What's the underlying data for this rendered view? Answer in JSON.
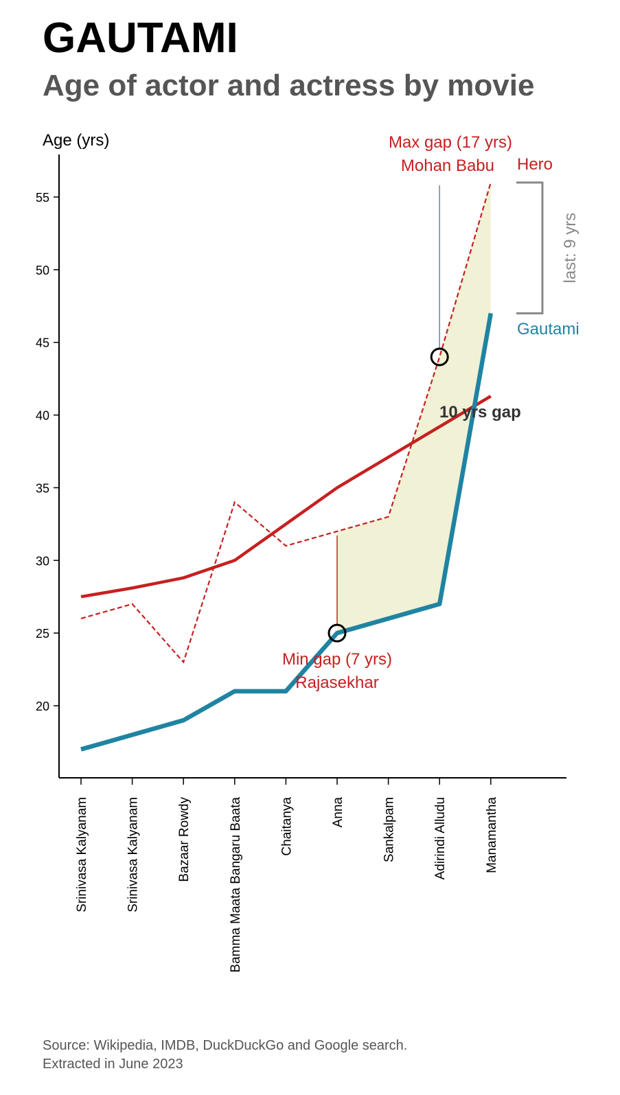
{
  "header": {
    "title": "GAUTAMI",
    "subtitle": "Age of actor and actress by movie"
  },
  "footer": {
    "source_line": "Source: Wikipedia, IMDB, DuckDuckGo and Google search.",
    "extracted_line": "Extracted in June 2023"
  },
  "chart_data": {
    "type": "line",
    "ylabel": "Age (yrs)",
    "ylim": [
      15,
      58
    ],
    "yticks": [
      20,
      25,
      30,
      35,
      40,
      45,
      50,
      55
    ],
    "categories": [
      "Srinivasa Kalyanam",
      "Srinivasa Kalyanam",
      "Bazaar Rowdy",
      "Bamma Maata Bangaru Baata",
      "Chaitanya",
      "Anna",
      "Sankalpam",
      "Adirindi Alludu",
      "Manamantha"
    ],
    "series": [
      {
        "name": "Hero",
        "style": "dashed",
        "color": "#c62020",
        "values": [
          26,
          27,
          23,
          34,
          31,
          32,
          33,
          44,
          56
        ]
      },
      {
        "name": "Gautami",
        "style": "solid",
        "color": "#1f84a2",
        "values": [
          17,
          18,
          19,
          21,
          21,
          25,
          26,
          27,
          47
        ]
      }
    ],
    "trend": {
      "style": "solid",
      "color": "#c62020",
      "values": [
        27.5,
        28.1,
        28.8,
        30,
        32.5,
        35,
        37.1,
        39.2,
        41.3
      ]
    },
    "gap_fill": {
      "from_index": 5,
      "to_index": 8,
      "color": "#f1f1d6"
    },
    "annotations": {
      "max_gap": {
        "index": 7,
        "label_line1": "Max gap (17 yrs)",
        "label_line2": "Mohan Babu",
        "color": "#c62020"
      },
      "min_gap": {
        "index": 5,
        "label_line1": "Min gap (7 yrs)",
        "label_line2": "Rajasekhar",
        "color": "#c62020"
      },
      "avg_gap": {
        "label": "10 yrs gap",
        "color": "#333333"
      },
      "last_gap": {
        "label": "last: 9 yrs",
        "color": "#888888"
      },
      "hero_label": {
        "text": "Hero",
        "color": "#c62020"
      },
      "gautami_label": {
        "text": "Gautami",
        "color": "#1f84a2"
      }
    }
  }
}
